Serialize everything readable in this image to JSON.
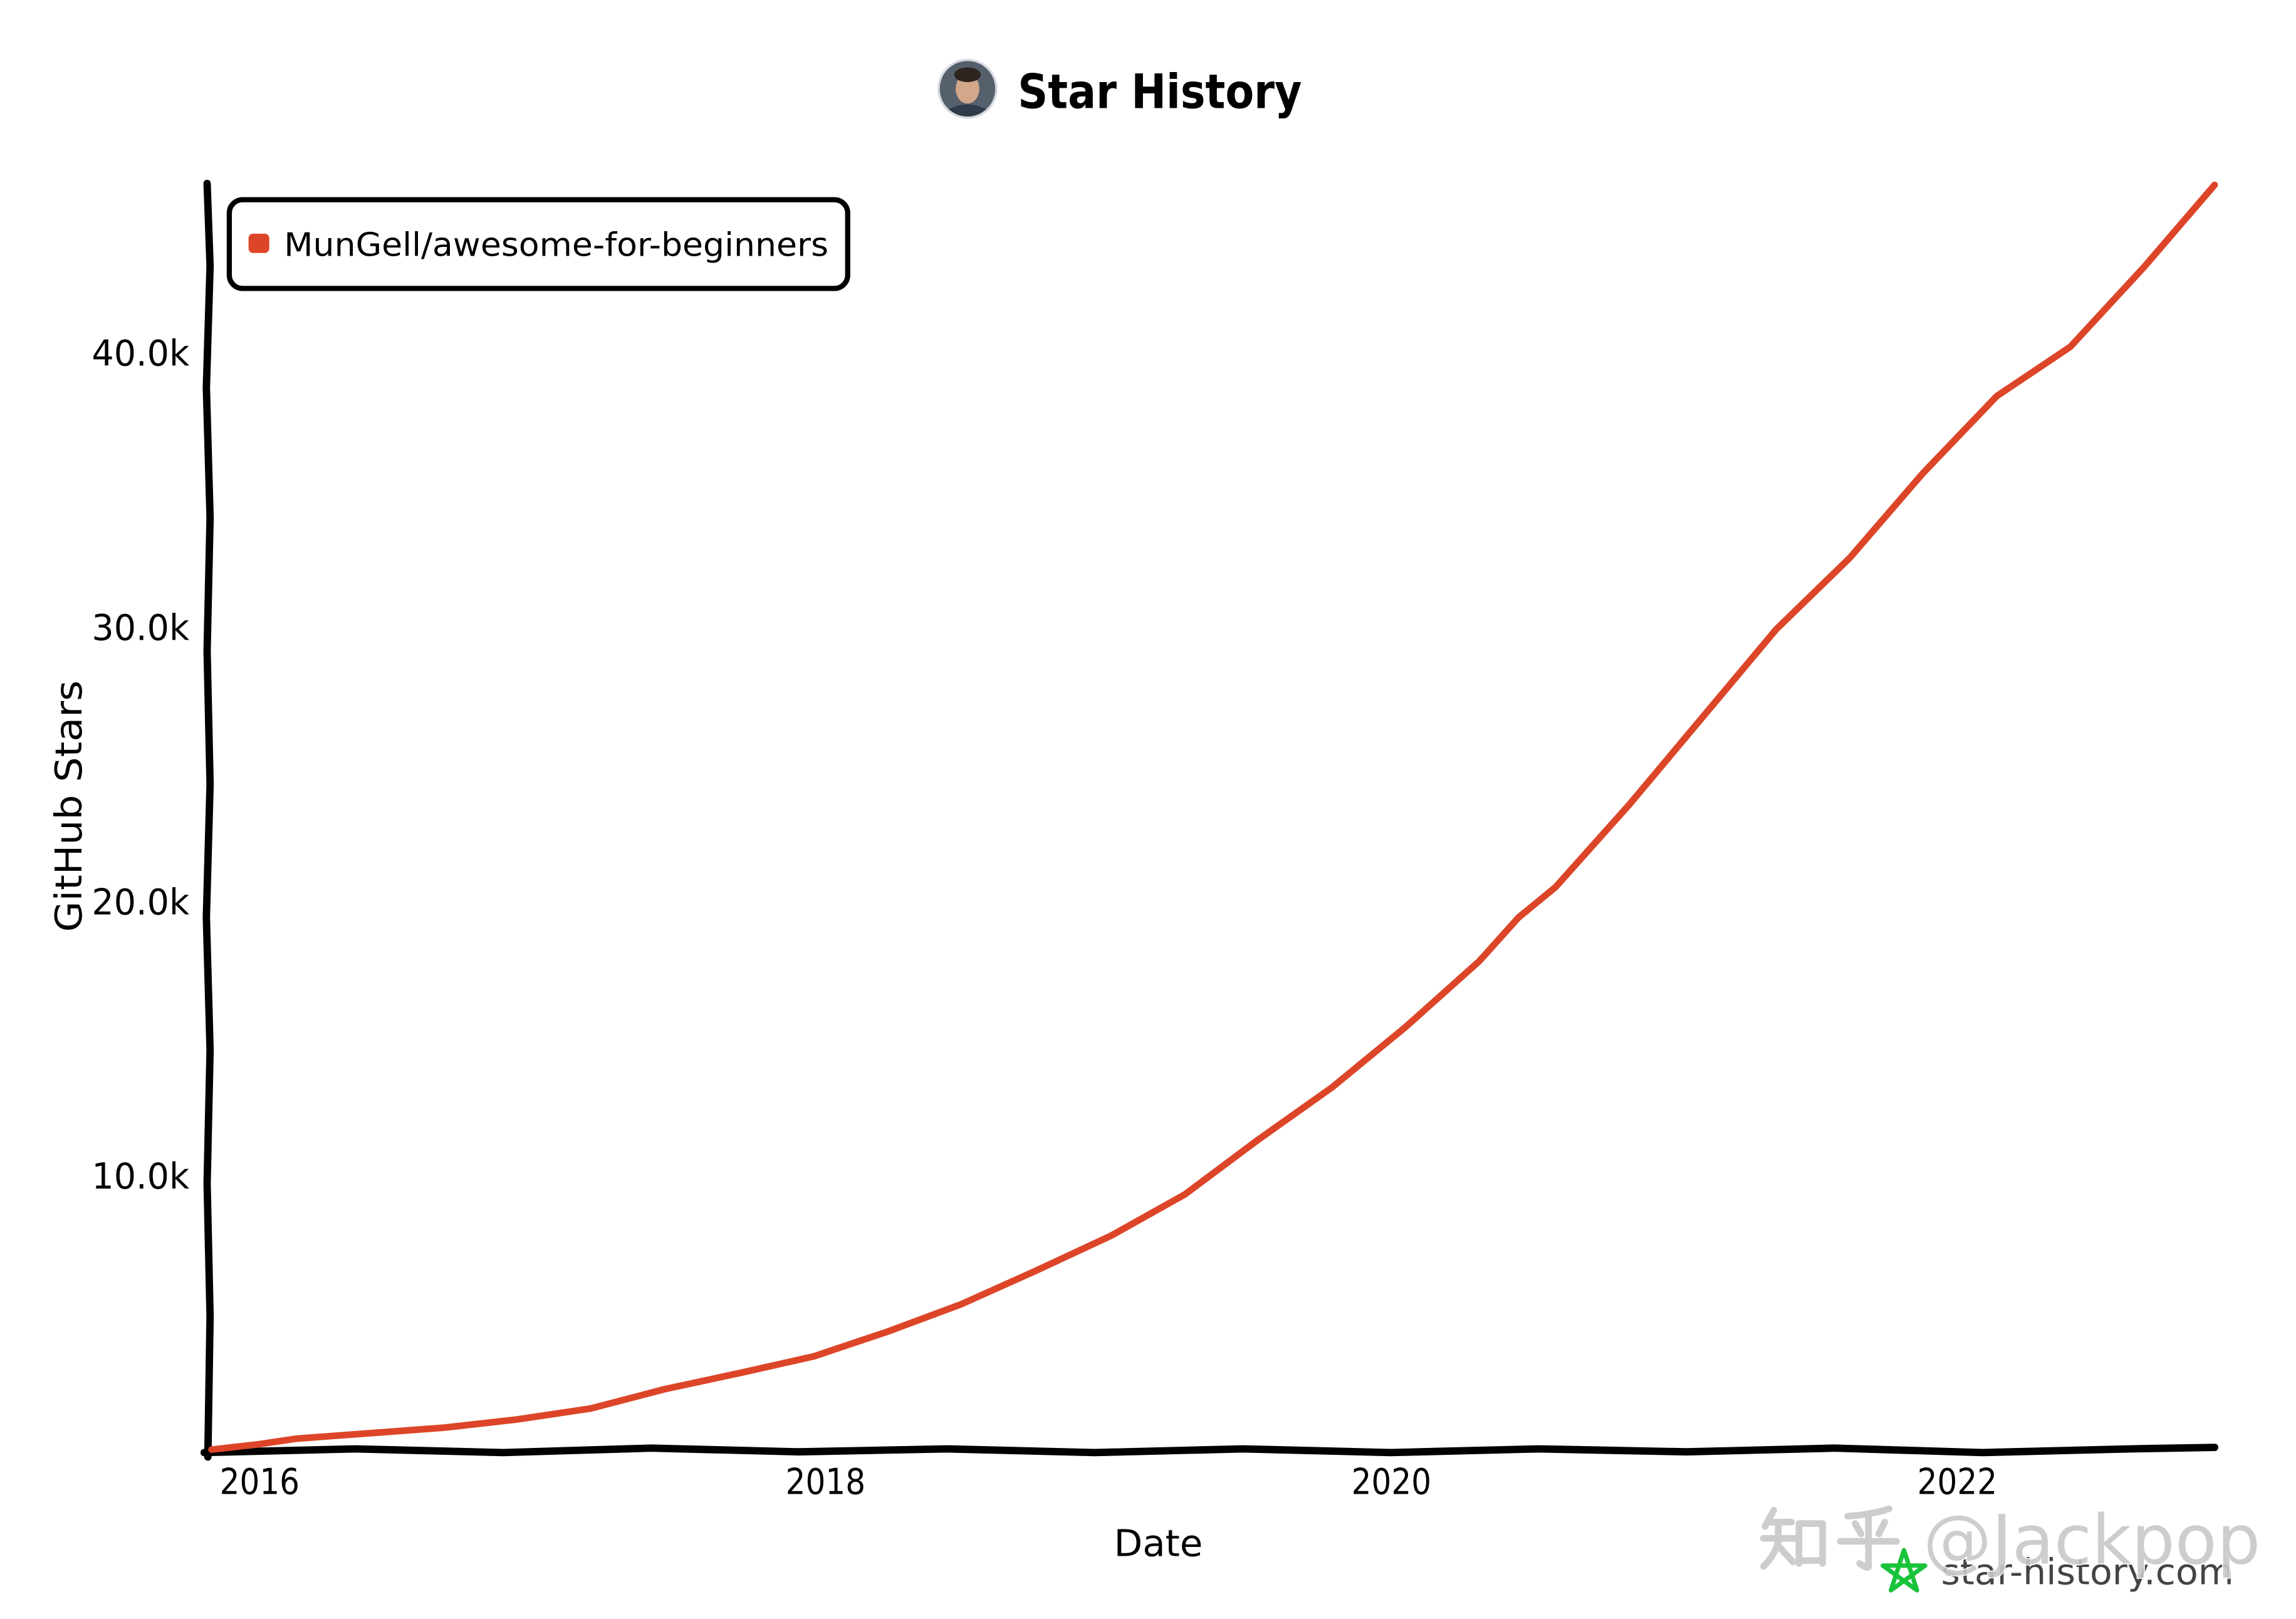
{
  "chart_data": {
    "type": "line",
    "title": "Star History",
    "xlabel": "Date",
    "ylabel": "GitHub Stars",
    "xlim": [
      2015.83,
      2022.91
    ],
    "ylim": [
      0,
      46100
    ],
    "x_ticks": [
      2016,
      2018,
      2020,
      2022
    ],
    "x_tick_labels": [
      "2016",
      "2018",
      "2020",
      "2022"
    ],
    "y_ticks": [
      10000,
      20000,
      30000,
      40000
    ],
    "y_tick_labels": [
      "10.0k",
      "20.0k",
      "30.0k",
      "40.0k"
    ],
    "grid": false,
    "legend_position": "top-left",
    "series": [
      {
        "name": "MunGell/awesome-for-beginners",
        "color": "#dd4528",
        "x": [
          2015.83,
          2016.0,
          2016.13,
          2016.39,
          2016.65,
          2016.91,
          2017.17,
          2017.43,
          2017.7,
          2017.96,
          2018.22,
          2018.48,
          2018.74,
          2019.01,
          2019.27,
          2019.53,
          2019.79,
          2020.05,
          2020.31,
          2020.45,
          2020.58,
          2020.84,
          2021.1,
          2021.36,
          2021.62,
          2021.88,
          2022.14,
          2022.4,
          2022.66,
          2022.91
        ],
        "y": [
          0,
          200,
          400,
          600,
          800,
          1100,
          1500,
          2200,
          2800,
          3400,
          4300,
          5300,
          6500,
          7800,
          9300,
          11300,
          13200,
          15400,
          17800,
          19400,
          20500,
          23500,
          26700,
          29900,
          32500,
          35600,
          38400,
          40200,
          43100,
          46100
        ]
      }
    ]
  },
  "footer": {
    "site": "star-history.com"
  },
  "watermark": {
    "brand": "知乎",
    "handle": "@Jackpop"
  },
  "colors": {
    "logo_star": "#19c43b",
    "watermark": "#c8c8c8"
  }
}
